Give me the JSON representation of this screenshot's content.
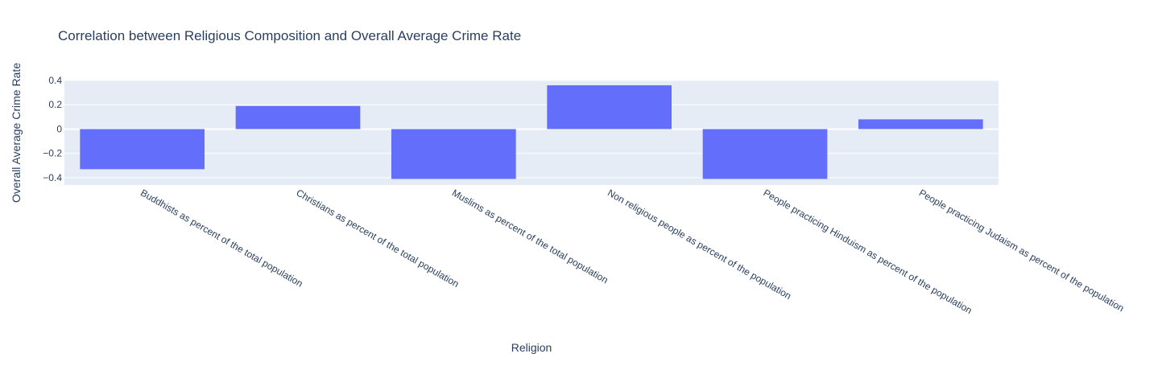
{
  "chart_data": {
    "type": "bar",
    "title": "Correlation between Religious Composition and Overall Average Crime Rate",
    "xlabel": "Religion",
    "ylabel": "Overall Average Crime Rate",
    "categories": [
      "Buddhists as percent of the total population",
      "Christians as percent of the total population",
      "Muslims as percent of the total population",
      "Non religious people as percent of the population",
      "People practicing Hinduism as percent of the population",
      "People practicing Judaism as percent of the population"
    ],
    "values": [
      -0.33,
      0.19,
      -0.41,
      0.36,
      -0.41,
      0.08
    ],
    "ylim": [
      -0.46,
      0.4
    ],
    "yticks": [
      0.4,
      0.2,
      0,
      -0.2,
      -0.4
    ],
    "ytick_labels": [
      "0.4",
      "0.2",
      "0",
      "−0.2",
      "−0.4"
    ],
    "grid": true,
    "colors": {
      "bar": "#636efa",
      "plot_bg": "#e5ecf6",
      "grid": "#ffffff",
      "text": "#2a3f5f"
    }
  }
}
